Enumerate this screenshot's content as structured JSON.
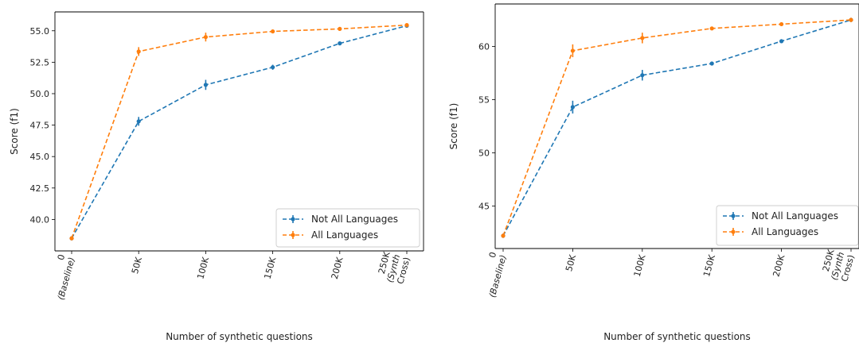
{
  "colors": {
    "series_0": "#1f77b4",
    "series_1": "#ff7f0e"
  },
  "chart_data": [
    {
      "type": "line",
      "xlabel": "Number of synthetic questions",
      "ylabel": "Score (f1)",
      "x_categories": [
        "0 (Baseline)",
        "50K",
        "100K",
        "150K",
        "200K",
        "250K (Synth Cross)"
      ],
      "x_tick_lines": [
        [
          "0",
          "(Baseline)"
        ],
        [
          "50K"
        ],
        [
          "100K"
        ],
        [
          "150K"
        ],
        [
          "200K"
        ],
        [
          "250K",
          "(Synth",
          "Cross)"
        ]
      ],
      "ylim": [
        37.5,
        56.5
      ],
      "yticks": [
        40.0,
        42.5,
        45.0,
        47.5,
        50.0,
        52.5,
        55.0
      ],
      "ytick_labels": [
        "40.0",
        "42.5",
        "45.0",
        "47.5",
        "50.0",
        "52.5",
        "55.0"
      ],
      "legend_position": "lower-right",
      "series": [
        {
          "name": "Not All Languages",
          "values": [
            38.5,
            47.8,
            50.7,
            52.1,
            54.0,
            55.4
          ],
          "errors": [
            0.15,
            0.35,
            0.4,
            0.2,
            0.1,
            0.12
          ]
        },
        {
          "name": "All Languages",
          "values": [
            38.5,
            53.35,
            54.5,
            54.95,
            55.15,
            55.45
          ],
          "errors": [
            0.15,
            0.35,
            0.35,
            0.15,
            0.1,
            0.1
          ]
        }
      ]
    },
    {
      "type": "line",
      "xlabel": "Number of synthetic questions",
      "ylabel": "Score (f1)",
      "x_categories": [
        "0 (Baseline)",
        "50K",
        "100K",
        "150K",
        "200K",
        "250K (Synth Cross)"
      ],
      "x_tick_lines": [
        [
          "0",
          "(Baseline)"
        ],
        [
          "50K"
        ],
        [
          "100K"
        ],
        [
          "150K"
        ],
        [
          "200K"
        ],
        [
          "250K",
          "(Synth",
          "Cross)"
        ]
      ],
      "ylim": [
        41.0,
        64.0
      ],
      "yticks": [
        45,
        50,
        55,
        60
      ],
      "ytick_labels": [
        "45",
        "50",
        "55",
        "60"
      ],
      "legend_position": "lower-right",
      "series": [
        {
          "name": "Not All Languages",
          "values": [
            42.2,
            54.3,
            57.3,
            58.4,
            60.5,
            62.5
          ],
          "errors": [
            0.2,
            0.6,
            0.5,
            0.15,
            0.15,
            0.2
          ]
        },
        {
          "name": "All Languages",
          "values": [
            42.2,
            59.6,
            60.8,
            61.7,
            62.1,
            62.5
          ],
          "errors": [
            0.2,
            0.6,
            0.5,
            0.15,
            0.15,
            0.2
          ]
        }
      ]
    }
  ]
}
